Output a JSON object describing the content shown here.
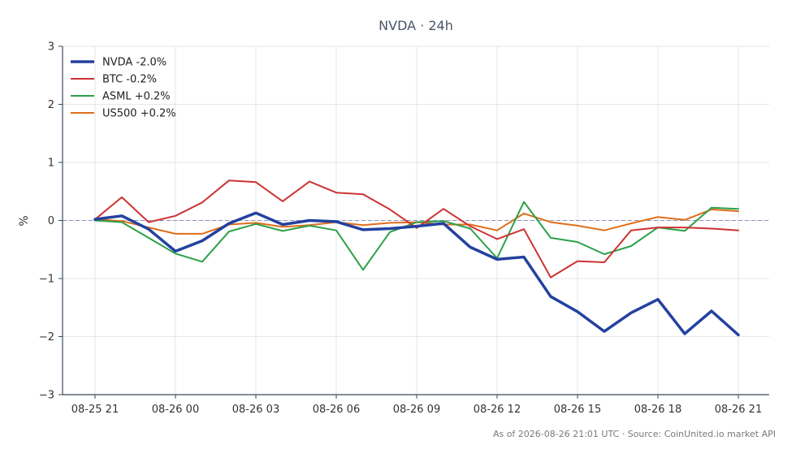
{
  "chart_data": {
    "type": "line",
    "title": "NVDA · 24h",
    "ylabel": "%",
    "xlabel": "",
    "ylim": [
      -3,
      3
    ],
    "yticks": [
      {
        "value": 3,
        "label": "3"
      },
      {
        "value": 2,
        "label": "2"
      },
      {
        "value": 1,
        "label": "1"
      },
      {
        "value": 0,
        "label": "0"
      },
      {
        "value": -1,
        "label": "−1"
      },
      {
        "value": -2,
        "label": "−2"
      },
      {
        "value": -3,
        "label": "−3"
      }
    ],
    "xticks": [
      {
        "index": 0,
        "label": "08-25 21"
      },
      {
        "index": 3,
        "label": "08-26 00"
      },
      {
        "index": 6,
        "label": "08-26 03"
      },
      {
        "index": 9,
        "label": "08-26 06"
      },
      {
        "index": 12,
        "label": "08-26 09"
      },
      {
        "index": 15,
        "label": "08-26 12"
      },
      {
        "index": 18,
        "label": "08-26 15"
      },
      {
        "index": 21,
        "label": "08-26 18"
      },
      {
        "index": 24,
        "label": "08-26 21"
      }
    ],
    "grid": true,
    "zero_line": true,
    "legend_position": "top-left",
    "x": [
      "08-25 21",
      "08-25 22",
      "08-25 23",
      "08-26 00",
      "08-26 01",
      "08-26 02",
      "08-26 03",
      "08-26 04",
      "08-26 05",
      "08-26 06",
      "08-26 07",
      "08-26 08",
      "08-26 09",
      "08-26 10",
      "08-26 11",
      "08-26 12",
      "08-26 13",
      "08-26 14",
      "08-26 15",
      "08-26 16",
      "08-26 17",
      "08-26 18",
      "08-26 19",
      "08-26 20",
      "08-26 21"
    ],
    "series": [
      {
        "name": "NVDA -2.0%",
        "color": "#2341a0",
        "width": 3.5,
        "values": [
          0.02,
          0.08,
          -0.15,
          -0.53,
          -0.35,
          -0.05,
          0.13,
          -0.07,
          0.0,
          -0.02,
          -0.16,
          -0.14,
          -0.1,
          -0.05,
          -0.46,
          -0.67,
          -0.63,
          -1.31,
          -1.57,
          -1.91,
          -1.59,
          -1.36,
          -1.95,
          -1.56,
          -1.97
        ]
      },
      {
        "name": "BTC -0.2%",
        "color": "#cc3333",
        "width": 2,
        "values": [
          0.02,
          0.4,
          -0.03,
          0.08,
          0.31,
          0.69,
          0.66,
          0.33,
          0.67,
          0.48,
          0.45,
          0.19,
          -0.13,
          0.2,
          -0.1,
          -0.32,
          -0.15,
          -0.98,
          -0.7,
          -0.72,
          -0.17,
          -0.12,
          -0.12,
          -0.14,
          -0.17
        ]
      },
      {
        "name": "ASML +0.2%",
        "color": "#2ca048",
        "width": 2,
        "values": [
          0.0,
          -0.03,
          -0.3,
          -0.57,
          -0.71,
          -0.19,
          -0.06,
          -0.18,
          -0.09,
          -0.17,
          -0.85,
          -0.2,
          -0.03,
          -0.01,
          -0.14,
          -0.65,
          0.32,
          -0.3,
          -0.37,
          -0.58,
          -0.44,
          -0.12,
          -0.18,
          0.22,
          0.2
        ]
      },
      {
        "name": "US500 +0.2%",
        "color": "#e06d1a",
        "width": 2,
        "values": [
          0.02,
          -0.01,
          -0.12,
          -0.23,
          -0.23,
          -0.07,
          -0.04,
          -0.11,
          -0.08,
          -0.03,
          -0.08,
          -0.04,
          -0.03,
          -0.07,
          -0.07,
          -0.17,
          0.12,
          -0.03,
          -0.09,
          -0.17,
          -0.05,
          0.06,
          0.01,
          0.19,
          0.16
        ]
      }
    ]
  },
  "footer": "As of 2026-08-26 21:01 UTC · Source: CoinUnited.io market API",
  "colors": {
    "axis": "#3a4a5a",
    "grid": "#e6e6e6",
    "zero_line": "#8a94b8"
  }
}
